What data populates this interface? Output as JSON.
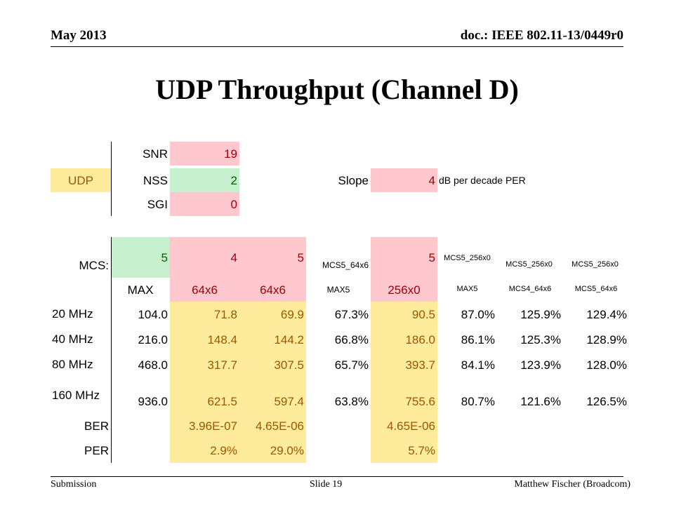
{
  "header": {
    "date": "May 2013",
    "doc": "doc.: IEEE 802.11-13/0449r0"
  },
  "title": "UDP Throughput (Channel D)",
  "footer": {
    "left": "Submission",
    "slide": "Slide 19",
    "author": "Matthew Fischer (Broadcom)"
  },
  "params": {
    "snr_label": "SNR",
    "snr_value": "19",
    "udp_label": "UDP",
    "nss_label": "NSS",
    "nss_value": "2",
    "sgi_label": "SGI",
    "sgi_value": "0",
    "slope_label": "Slope",
    "slope_value": "4",
    "slope_unit": "dB per decade PER"
  },
  "table": {
    "mcs_label": "MCS:",
    "mcs": [
      "5",
      "4",
      "5",
      "MCS5_64x6",
      "5",
      "MCS5_256x0",
      "MCS5_256x0",
      "MCS5_256x0"
    ],
    "sub": [
      "MAX",
      "64x6",
      "64x6",
      "MAX5",
      "256x0",
      "MAX5",
      "MCS4_64x6",
      "MCS5_64x6"
    ],
    "rows": [
      {
        "label": "20 MHz",
        "values": [
          "104.0",
          "71.8",
          "69.9",
          "67.3%",
          "90.5",
          "87.0%",
          "125.9%",
          "129.4%"
        ]
      },
      {
        "label": "40 MHz",
        "values": [
          "216.0",
          "148.4",
          "144.2",
          "66.8%",
          "186.0",
          "86.1%",
          "125.3%",
          "128.9%"
        ]
      },
      {
        "label": "80 MHz",
        "values": [
          "468.0",
          "317.7",
          "307.5",
          "65.7%",
          "393.7",
          "84.1%",
          "123.9%",
          "128.0%"
        ]
      },
      {
        "label": "160 MHz",
        "values": [
          "936.0",
          "621.5",
          "597.4",
          "63.8%",
          "755.6",
          "80.7%",
          "121.6%",
          "126.5%"
        ]
      }
    ],
    "ber_label": "BER",
    "ber": [
      "3.96E-07",
      "4.65E-06",
      "4.65E-06"
    ],
    "per_label": "PER",
    "per": [
      "2.9%",
      "29.0%",
      "5.7%"
    ]
  }
}
